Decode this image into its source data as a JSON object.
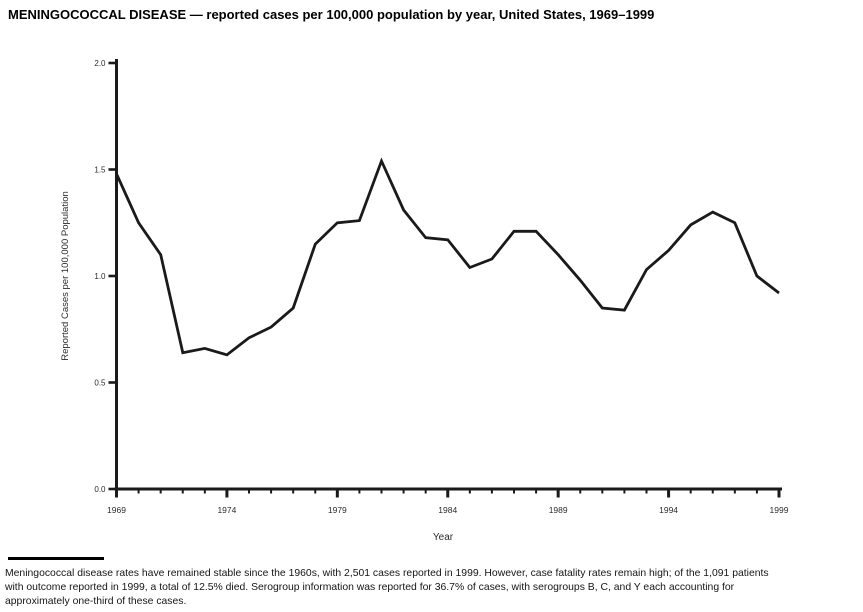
{
  "page": {
    "title": "MENINGOCOCCAL DISEASE — reported cases per 100,000 population by year, United States, 1969–1999"
  },
  "chart_data": {
    "type": "line",
    "title": "MENINGOCOCCAL DISEASE — reported cases per 100,000 population by year, United States, 1969–1999",
    "xlabel": "Year",
    "ylabel": "Reported Cases per 100,000 Population",
    "x": [
      1969,
      1970,
      1971,
      1972,
      1973,
      1974,
      1975,
      1976,
      1977,
      1978,
      1979,
      1980,
      1981,
      1982,
      1983,
      1984,
      1985,
      1986,
      1987,
      1988,
      1989,
      1990,
      1991,
      1992,
      1993,
      1994,
      1995,
      1996,
      1997,
      1998,
      1999
    ],
    "values": [
      1.48,
      1.25,
      1.1,
      0.64,
      0.66,
      0.63,
      0.71,
      0.76,
      0.85,
      1.15,
      1.25,
      1.26,
      1.54,
      1.31,
      1.18,
      1.17,
      1.04,
      1.08,
      1.21,
      1.21,
      1.1,
      0.98,
      0.85,
      0.84,
      1.03,
      1.12,
      1.24,
      1.3,
      1.25,
      1.0,
      0.92
    ],
    "xlim": [
      1969,
      1999
    ],
    "ylim": [
      0.0,
      2.0
    ],
    "y_ticks": [
      {
        "v": 0.0,
        "label": "0.0"
      },
      {
        "v": 0.5,
        "label": "0.5"
      },
      {
        "v": 1.0,
        "label": "1.0"
      },
      {
        "v": 1.5,
        "label": "1.5"
      },
      {
        "v": 2.0,
        "label": "2.0"
      }
    ],
    "x_major_ticks": [
      1969,
      1974,
      1979,
      1984,
      1989,
      1994,
      1999
    ],
    "grid": false,
    "legend": null,
    "line_color": "#1a1a1a",
    "axis_color": "#1a1a1a"
  },
  "footnote": {
    "lines": [
      "Meningococcal disease rates have remained stable since the 1960s, with 2,501 cases reported in 1999. However, case fatality rates remain high; of the 1,091 patients",
      "with outcome reported in 1999, a total of 12.5% died. Serogroup information was reported for 36.7% of cases, with serogroups B, C, and Y each accounting for",
      "approximately one-third of these cases."
    ]
  }
}
